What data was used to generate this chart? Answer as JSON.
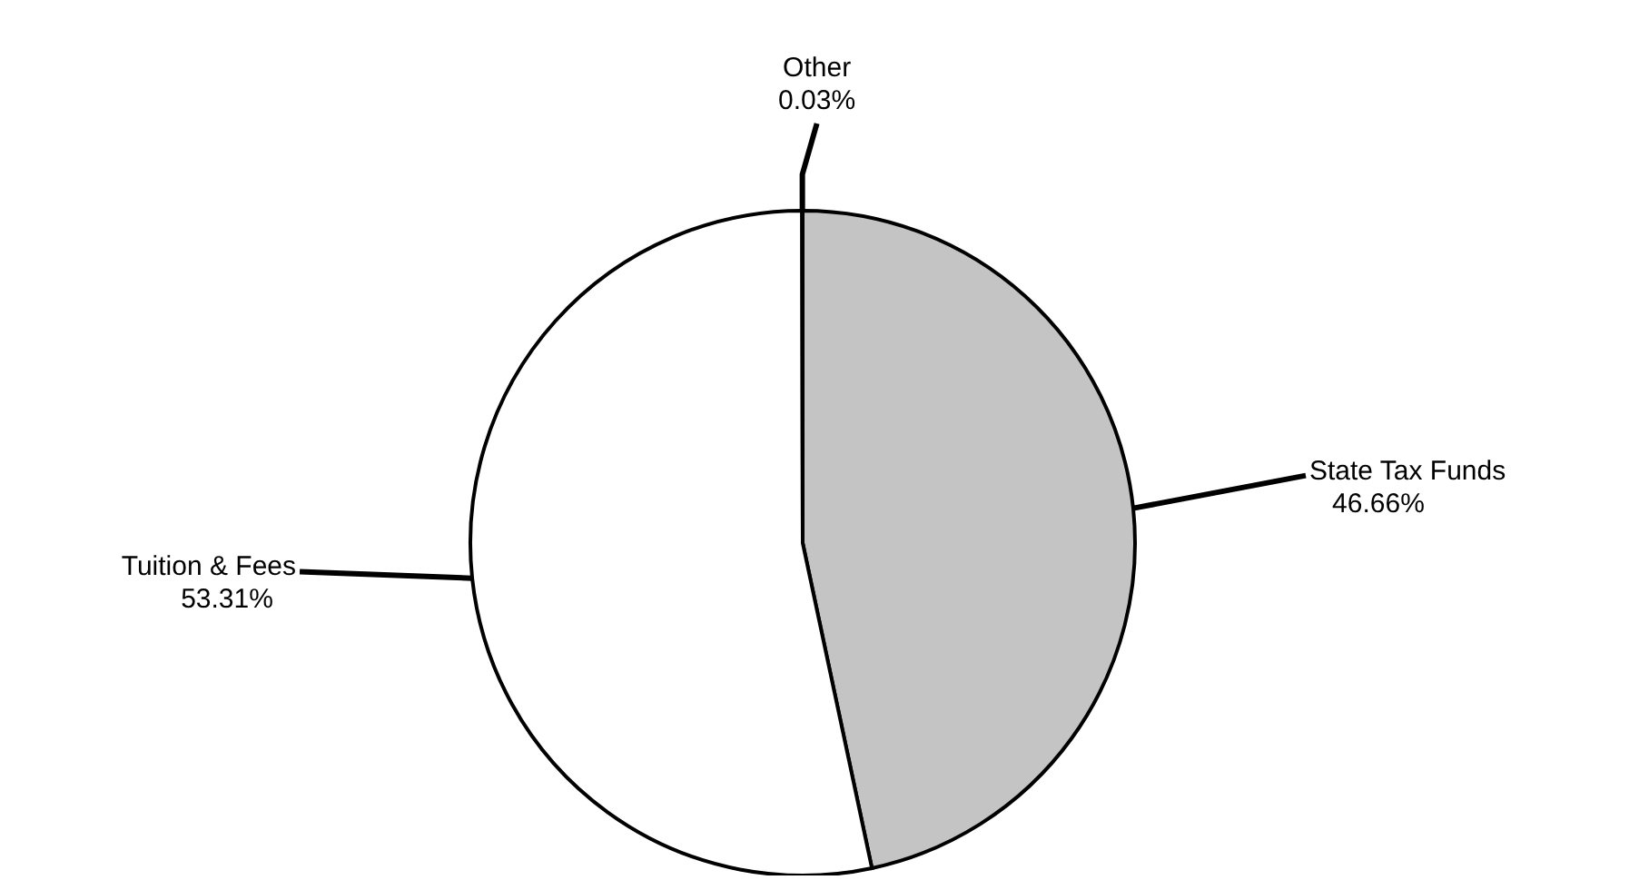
{
  "chart_data": {
    "type": "pie",
    "categories": [
      "State Tax Funds",
      "Tuition & Fees",
      "Other"
    ],
    "values": [
      46.66,
      53.31,
      0.03
    ],
    "colors": [
      "#c4c4c4",
      "#ffffff",
      "#ffffff"
    ],
    "value_labels": [
      "46.66%",
      "53.31%",
      "0.03%"
    ],
    "legend": false
  }
}
